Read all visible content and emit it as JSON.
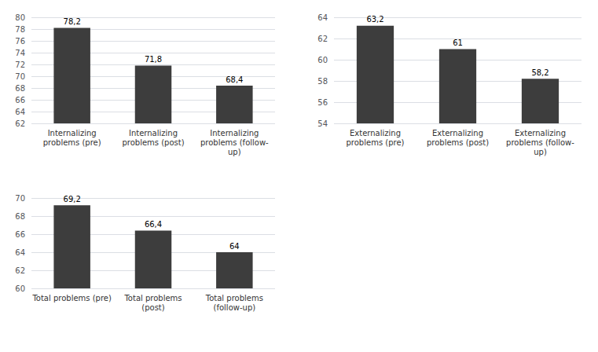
{
  "chart_data": [
    {
      "type": "bar",
      "categories": [
        "Internalizing\nproblems (pre)",
        "Internalizing\nproblems (post)",
        "Internalizing\nproblems (follow-\nup)"
      ],
      "values": [
        78.2,
        71.8,
        68.4
      ],
      "value_labels": [
        "78,2",
        "71,8",
        "68,4"
      ],
      "color": "#3d3d3d",
      "ylim": [
        62,
        80
      ],
      "yticks": [
        62,
        64,
        66,
        68,
        70,
        72,
        74,
        76,
        78,
        80
      ],
      "grid": true,
      "data_labels": true
    },
    {
      "type": "bar",
      "categories": [
        "Externalizing\nproblems (pre)",
        "Externalizing\nproblems (post)",
        "Externalizing\nproblems (follow-\nup)"
      ],
      "values": [
        63.2,
        61.0,
        58.2
      ],
      "value_labels": [
        "63,2",
        "61",
        "58,2"
      ],
      "color": "#3d3d3d",
      "ylim": [
        54,
        64
      ],
      "yticks": [
        54,
        56,
        58,
        60,
        62,
        64
      ],
      "grid": true,
      "data_labels": true
    },
    {
      "type": "bar",
      "categories": [
        "Total problems (pre)",
        "Total problems\n(post)",
        "Total problems\n(follow-up)"
      ],
      "values": [
        69.2,
        66.4,
        64.0
      ],
      "value_labels": [
        "69,2",
        "66,4",
        "64"
      ],
      "color": "#3d3d3d",
      "ylim": [
        60,
        70
      ],
      "yticks": [
        60,
        62,
        64,
        66,
        68,
        70
      ],
      "grid": true,
      "data_labels": true
    }
  ]
}
